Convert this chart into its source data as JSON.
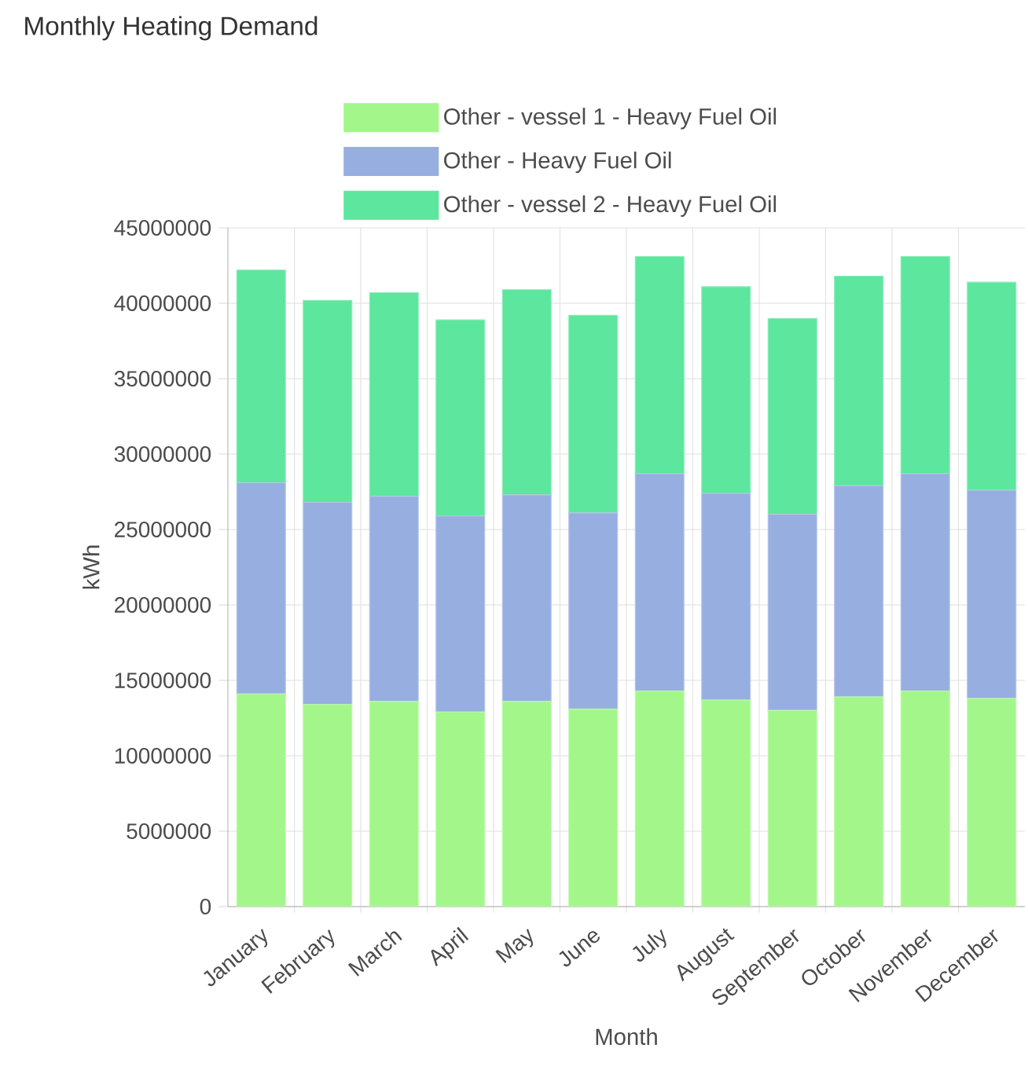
{
  "chart_data": {
    "type": "bar",
    "stacked": true,
    "title": "Monthly Heating Demand",
    "xlabel": "Month",
    "ylabel": "kWh",
    "categories": [
      "January",
      "February",
      "March",
      "April",
      "May",
      "June",
      "July",
      "August",
      "September",
      "October",
      "November",
      "December"
    ],
    "series": [
      {
        "name": "Other - vessel 1 - Heavy Fuel Oil",
        "color": "#a3f78a",
        "values": [
          14100000,
          13400000,
          13600000,
          12900000,
          13600000,
          13100000,
          14300000,
          13700000,
          13000000,
          13900000,
          14300000,
          13800000
        ]
      },
      {
        "name": "Other - Heavy Fuel Oil",
        "color": "#97aee0",
        "values": [
          14000000,
          13400000,
          13600000,
          13000000,
          13700000,
          13000000,
          14400000,
          13700000,
          13000000,
          14000000,
          14400000,
          13800000
        ]
      },
      {
        "name": "Other - vessel 2 - Heavy Fuel Oil",
        "color": "#5ce69e",
        "values": [
          14100000,
          13400000,
          13500000,
          13000000,
          13600000,
          13100000,
          14400000,
          13700000,
          13000000,
          13900000,
          14400000,
          13800000
        ]
      }
    ],
    "ylim": [
      0,
      45000000
    ],
    "yticks": [
      0,
      5000000,
      10000000,
      15000000,
      20000000,
      25000000,
      30000000,
      35000000,
      40000000,
      45000000
    ],
    "grid": true,
    "legend": "top"
  }
}
